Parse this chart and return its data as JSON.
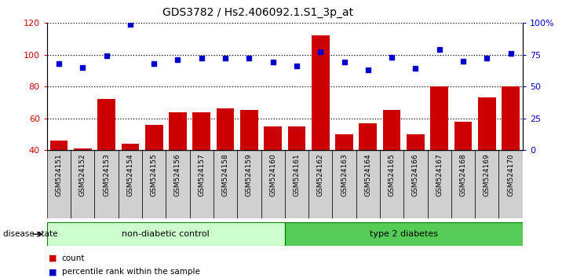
{
  "title": "GDS3782 / Hs2.406092.1.S1_3p_at",
  "samples": [
    "GSM524151",
    "GSM524152",
    "GSM524153",
    "GSM524154",
    "GSM524155",
    "GSM524156",
    "GSM524157",
    "GSM524158",
    "GSM524159",
    "GSM524160",
    "GSM524161",
    "GSM524162",
    "GSM524163",
    "GSM524164",
    "GSM524165",
    "GSM524166",
    "GSM524167",
    "GSM524168",
    "GSM524169",
    "GSM524170"
  ],
  "counts": [
    46,
    41,
    72,
    44,
    56,
    64,
    64,
    66,
    65,
    55,
    55,
    112,
    50,
    57,
    65,
    50,
    80,
    58,
    73,
    80
  ],
  "percentile": [
    68,
    65,
    74,
    99,
    68,
    71,
    72,
    72,
    72,
    69,
    66,
    77,
    69,
    63,
    73,
    64,
    79,
    70,
    72,
    76
  ],
  "non_diabetic_count": 10,
  "ylim_left": [
    40,
    120
  ],
  "ylim_right": [
    0,
    100
  ],
  "bar_color": "#cc0000",
  "dot_color": "#0000cc",
  "non_diabetic_bg": "#ccffcc",
  "diabetic_bg": "#55cc55",
  "non_diabetic_label": "non-diabetic control",
  "diabetic_label": "type 2 diabetes",
  "disease_state_label": "disease state",
  "legend_count": "count",
  "legend_percentile": "percentile rank within the sample",
  "left_yticks": [
    40,
    60,
    80,
    100,
    120
  ],
  "right_yticks": [
    0,
    25,
    50,
    75,
    100
  ],
  "right_yticklabels": [
    "0",
    "25",
    "50",
    "75",
    "100%"
  ],
  "xtick_box_color": "#d0d0d0",
  "xtick_font_size": 6.5
}
